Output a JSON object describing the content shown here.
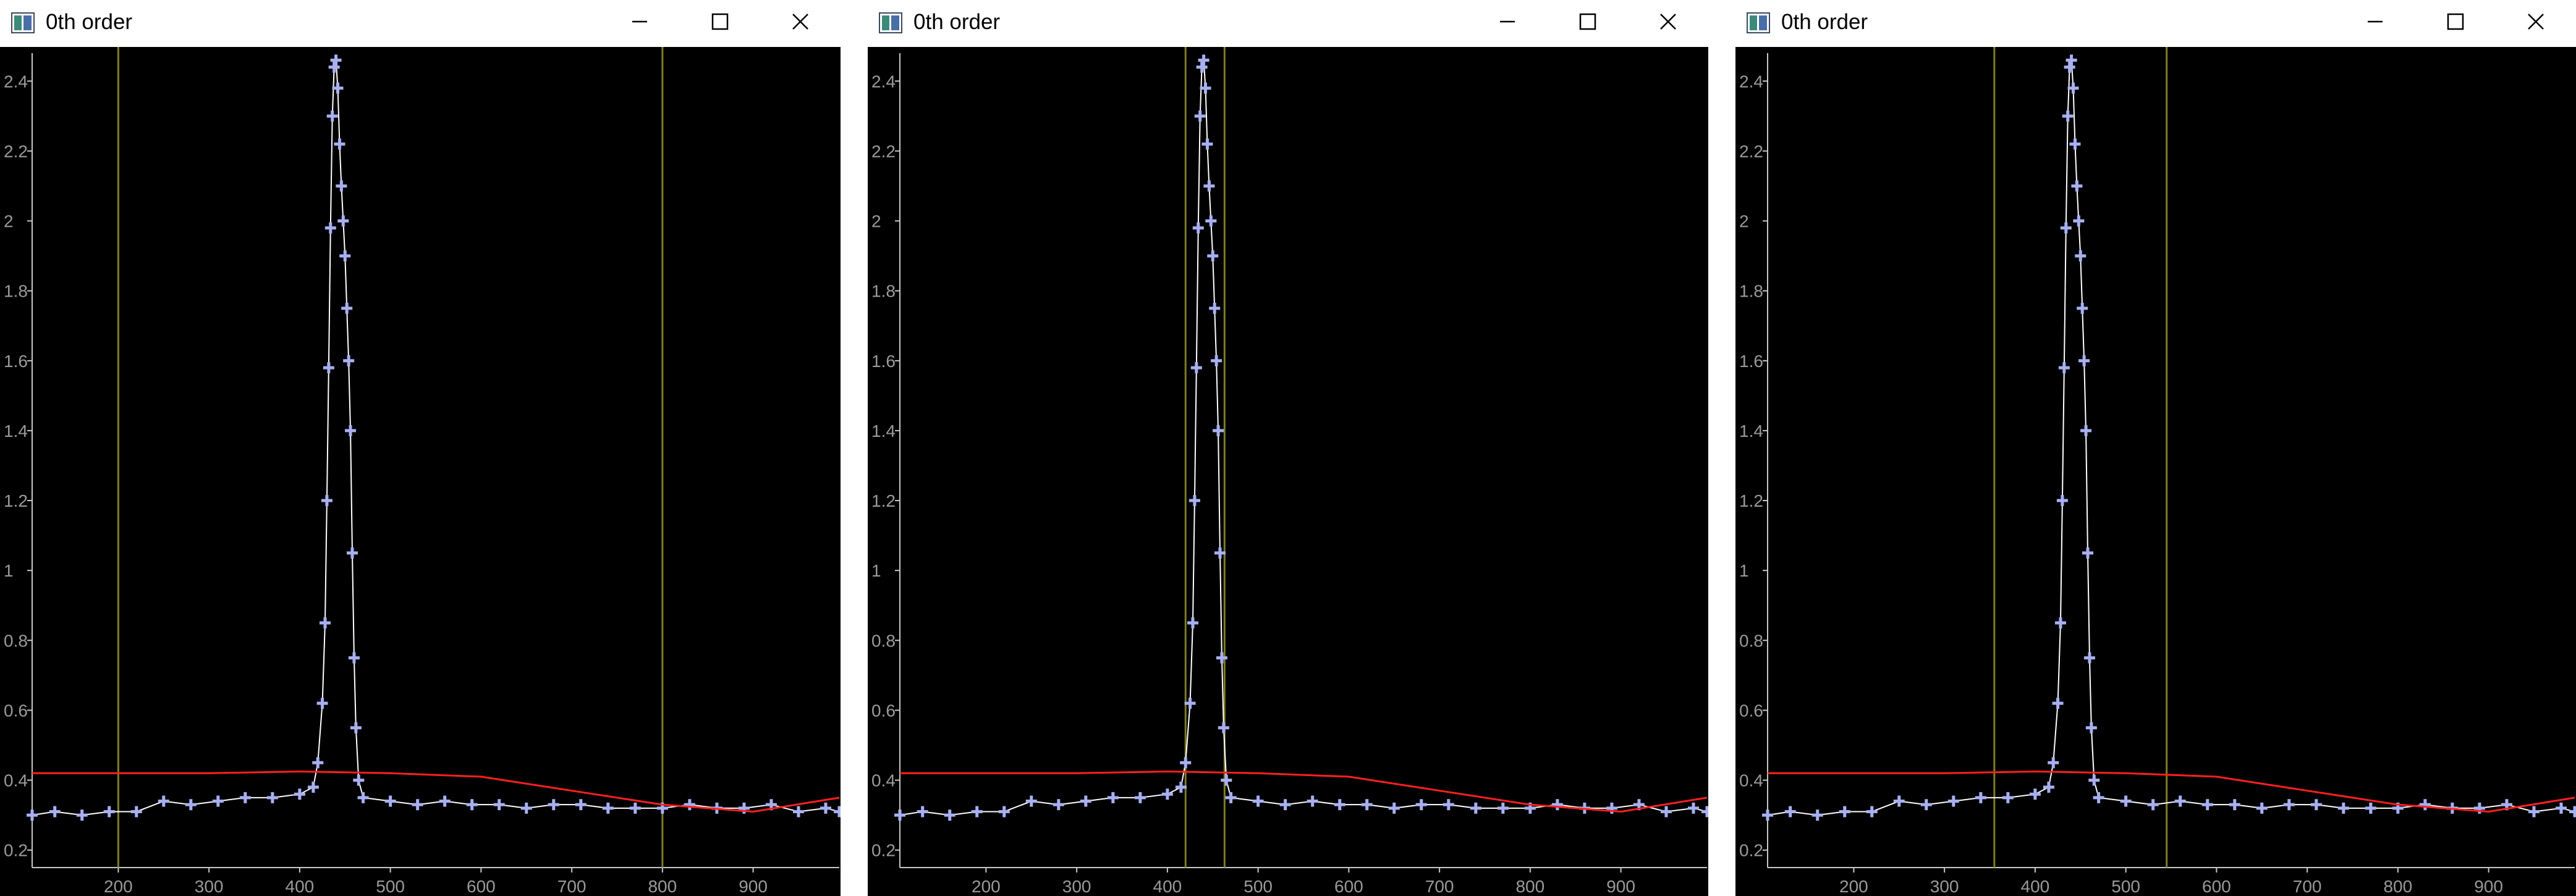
{
  "windows": [
    {
      "title": "0th order",
      "cursors_x": [
        200,
        800
      ]
    },
    {
      "title": "0th order",
      "cursors_x": [
        420,
        463
      ]
    },
    {
      "title": "0th order",
      "cursors_x": [
        355,
        545
      ]
    }
  ],
  "colors": {
    "plot_background": "#000000",
    "axis": "#c8c8c8",
    "tick_text": "#9a9a9a",
    "cursor_line": "#7d7d2a",
    "data_marker": "#a8b0f0",
    "data_line": "#ffffff",
    "fit_line": "#ff2020"
  },
  "icons": {
    "app": "app-window-icon",
    "minimize": "minimize-icon",
    "maximize": "maximize-icon",
    "close": "close-icon"
  },
  "chart_data": {
    "type": "scatter",
    "title": "0th order",
    "xlabel": "",
    "ylabel": "",
    "xlim": [
      105,
      995
    ],
    "ylim": [
      0.15,
      2.48
    ],
    "x_ticks": [
      200,
      300,
      400,
      500,
      600,
      700,
      800,
      900
    ],
    "y_ticks": [
      0.2,
      0.4,
      0.6,
      0.8,
      1,
      1.2,
      1.4,
      1.6,
      1.8,
      2,
      2.2,
      2.4
    ],
    "grid": false,
    "legend": "none",
    "series": [
      {
        "type": "scatter",
        "marker": "cross",
        "x": [
          105,
          130,
          160,
          190,
          220,
          250,
          280,
          310,
          340,
          370,
          400,
          415,
          420,
          425,
          428,
          430,
          432,
          434,
          436,
          438,
          440,
          442,
          444,
          446,
          448,
          450,
          452,
          454,
          456,
          458,
          460,
          462,
          465,
          470,
          500,
          530,
          560,
          590,
          620,
          650,
          680,
          710,
          740,
          770,
          800,
          830,
          860,
          890,
          920,
          950,
          980,
          995
        ],
        "y": [
          0.3,
          0.31,
          0.3,
          0.31,
          0.31,
          0.34,
          0.33,
          0.34,
          0.35,
          0.35,
          0.36,
          0.38,
          0.45,
          0.62,
          0.85,
          1.2,
          1.58,
          1.98,
          2.3,
          2.44,
          2.46,
          2.38,
          2.22,
          2.1,
          2.0,
          1.9,
          1.75,
          1.6,
          1.4,
          1.05,
          0.75,
          0.55,
          0.4,
          0.35,
          0.34,
          0.33,
          0.34,
          0.33,
          0.33,
          0.32,
          0.33,
          0.33,
          0.32,
          0.32,
          0.32,
          0.33,
          0.32,
          0.32,
          0.33,
          0.31,
          0.32,
          0.31
        ]
      },
      {
        "name": "",
        "type": "line",
        "color": "#ff2020",
        "x": [
          105,
          200,
          300,
          400,
          500,
          600,
          700,
          800,
          900,
          995
        ],
        "y": [
          0.42,
          0.42,
          0.42,
          0.425,
          0.42,
          0.41,
          0.37,
          0.33,
          0.31,
          0.35
        ]
      }
    ]
  }
}
